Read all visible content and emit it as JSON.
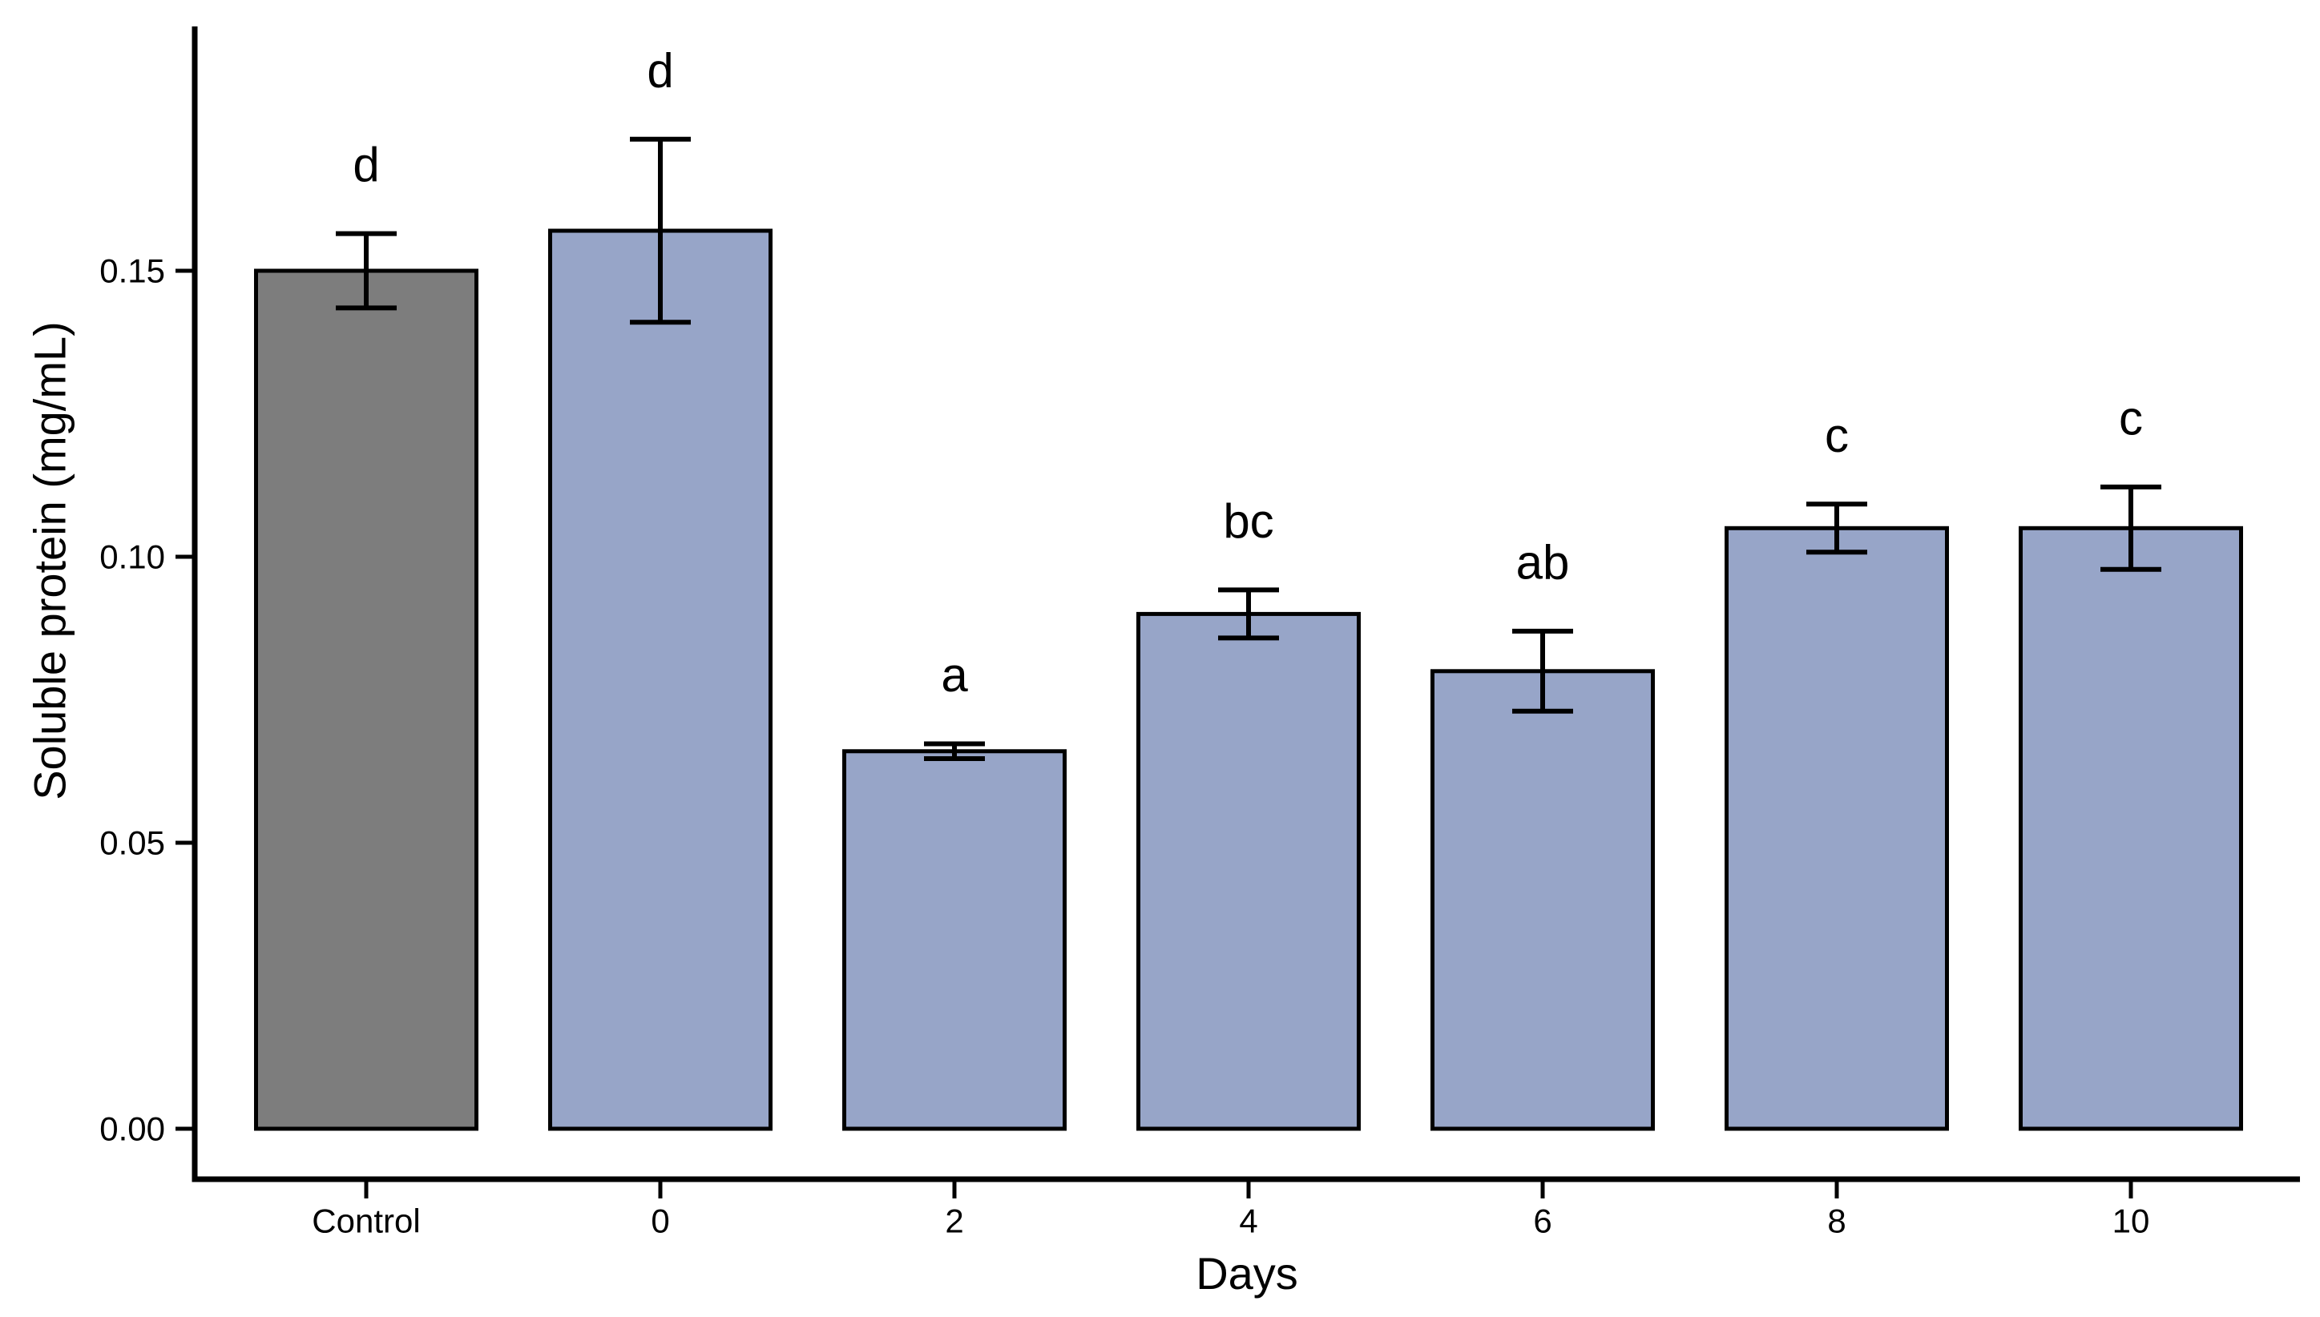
{
  "chart_data": {
    "type": "bar",
    "title": "",
    "xlabel": "Days",
    "ylabel": "Soluble protein (mg/mL)",
    "categories": [
      "Control",
      "0",
      "2",
      "4",
      "6",
      "8",
      "10"
    ],
    "series": [
      {
        "name": "Soluble protein (mg/mL)",
        "values": [
          0.15,
          0.157,
          0.066,
          0.09,
          0.08,
          0.105,
          0.105
        ],
        "errors": [
          0.0065,
          0.016,
          0.0013,
          0.0042,
          0.007,
          0.0042,
          0.0072
        ],
        "significance_letters": [
          "d",
          "d",
          "a",
          "bc",
          "ab",
          "c",
          "c"
        ]
      }
    ],
    "y_ticks": [
      0.0,
      0.05,
      0.1,
      0.15
    ],
    "y_tick_labels": [
      "0.00",
      "0.05",
      "0.10",
      "0.15"
    ],
    "ylim": [
      0,
      0.194
    ],
    "grid": false,
    "legend": false,
    "error_bars": "symmetric caps",
    "colors": {
      "control_bar_fill": "#7d7d7d",
      "treatment_bar_fill": "#97a5c8",
      "bar_border": "#000000",
      "axis": "#000000",
      "background": "#ffffff"
    }
  }
}
